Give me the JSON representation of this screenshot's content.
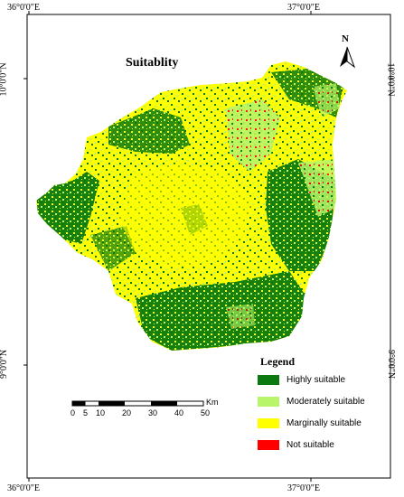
{
  "map": {
    "title": "Suitablity",
    "north_label": "N",
    "coords": {
      "top_left": "36°0'0\"E",
      "top_right": "37°0'0\"E",
      "bottom_left": "36°0'0\"E",
      "bottom_right": "37°0'0\"E",
      "left_upper": "10°0'0\"N",
      "left_lower": "9°0'0\"N",
      "right_upper": "10°0'0\"N",
      "right_lower": "9°0'0\"N"
    },
    "legend": {
      "title": "Legend",
      "items": [
        {
          "label": "Highly suitable",
          "color": "#0a7a10"
        },
        {
          "label": "Moderately suitable",
          "color": "#b8f56a"
        },
        {
          "label": "Marginally suitable",
          "color": "#ffff00"
        },
        {
          "label": "Not suitable",
          "color": "#ff0000"
        }
      ]
    },
    "scale": {
      "ticks": [
        "0",
        "5",
        "10",
        "20",
        "30",
        "40",
        "50"
      ],
      "unit": "Km"
    }
  }
}
